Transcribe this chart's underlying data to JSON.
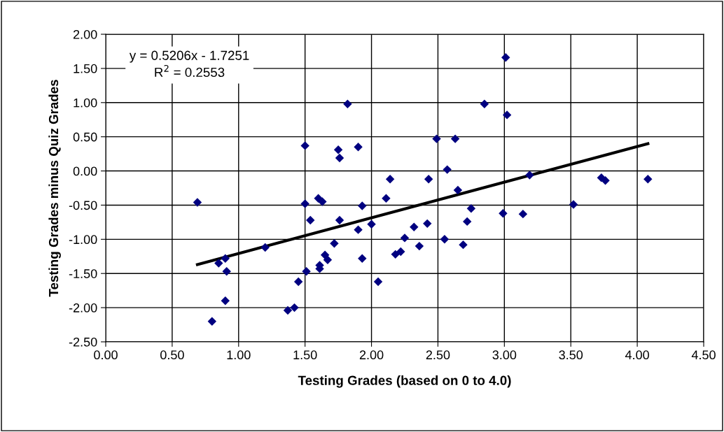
{
  "chart_data": {
    "type": "scatter",
    "xlabel": "Testing Grades (based on 0 to 4.0)",
    "ylabel": "Testing Grades minus Quiz Grades",
    "annotations": [
      "y = 0.5206x - 1.7251\nR$^{2}$ = 0.2553"
    ],
    "series": [
      {
        "color": "#000080",
        "marker": "diamond",
        "x": [
          0.69,
          0.8,
          0.85,
          0.9,
          0.91,
          0.9,
          1.2,
          1.37,
          1.42,
          1.45,
          1.5,
          1.5,
          1.51,
          1.54,
          1.6,
          1.61,
          1.61,
          1.63,
          1.65,
          1.67,
          1.72,
          1.75,
          1.76,
          1.76,
          1.82,
          1.9,
          1.9,
          1.93,
          1.93,
          2.0,
          2.05,
          2.11,
          2.14,
          2.18,
          2.22,
          2.25,
          2.32,
          2.36,
          2.42,
          2.43,
          2.49,
          2.55,
          2.57,
          2.63,
          2.65,
          2.69,
          2.72,
          2.75,
          2.85,
          2.99,
          3.01,
          3.02,
          3.14,
          3.19,
          3.52,
          3.73,
          3.76,
          4.08
        ],
        "values": [
          -0.46,
          -2.2,
          -1.35,
          -1.28,
          -1.47,
          -1.9,
          -1.12,
          -2.04,
          -2.0,
          -1.62,
          0.37,
          -0.48,
          -1.47,
          -0.72,
          -0.4,
          -1.38,
          -1.43,
          -0.45,
          -1.23,
          -1.3,
          -1.06,
          0.31,
          0.19,
          -0.72,
          0.98,
          0.35,
          -0.86,
          -0.51,
          -1.28,
          -0.78,
          -1.62,
          -0.4,
          -0.12,
          -1.22,
          -1.18,
          -0.98,
          -0.82,
          -1.1,
          -0.77,
          -0.12,
          0.47,
          -1.0,
          0.02,
          0.47,
          -0.28,
          -1.08,
          -0.74,
          -0.55,
          0.98,
          -0.62,
          1.66,
          0.82,
          -0.63,
          -0.06,
          -0.49,
          -0.1,
          -0.14,
          -0.12
        ]
      },
      {
        "type": "line",
        "color": "#000000",
        "marker": "none",
        "x": [
          0.69,
          4.08
        ],
        "values": [
          -1.37,
          0.4
        ]
      }
    ],
    "xlim": [
      0,
      4.5
    ],
    "ylim": [
      -2.5,
      2.0
    ],
    "xticks": [
      {
        "value": 0,
        "label": "0.00"
      },
      {
        "value": 0.5,
        "label": "0.50"
      },
      {
        "value": 1,
        "label": "1.00"
      },
      {
        "value": 1.5,
        "label": "1.50"
      },
      {
        "value": 2,
        "label": "2.00"
      },
      {
        "value": 2.5,
        "label": "2.50"
      },
      {
        "value": 3,
        "label": "3.00"
      },
      {
        "value": 3.5,
        "label": "3.50"
      },
      {
        "value": 4,
        "label": "4.00"
      },
      {
        "value": 4.5,
        "label": "4.50"
      }
    ],
    "yticks": [
      {
        "value": -2.5,
        "label": "-2.50"
      },
      {
        "value": -2,
        "label": "-2.00"
      },
      {
        "value": -1.5,
        "label": "-1.50"
      },
      {
        "value": -1,
        "label": "-1.00"
      },
      {
        "value": -0.5,
        "label": "-0.50"
      },
      {
        "value": 0,
        "label": "0.00"
      },
      {
        "value": 0.5,
        "label": "0.50"
      },
      {
        "value": 1,
        "label": "1.00"
      },
      {
        "value": 1.5,
        "label": "1.50"
      },
      {
        "value": 2,
        "label": "2.00"
      }
    ],
    "grid": true
  }
}
